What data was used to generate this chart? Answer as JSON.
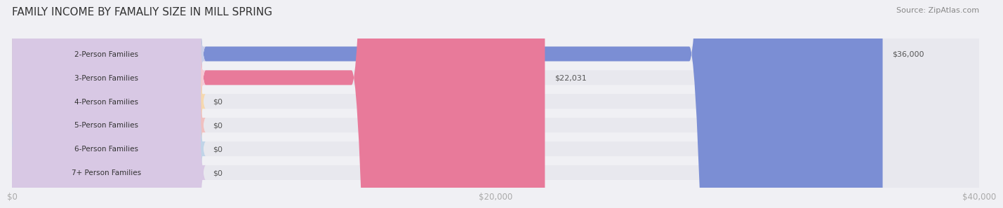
{
  "title": "FAMILY INCOME BY FAMALIY SIZE IN MILL SPRING",
  "source": "Source: ZipAtlas.com",
  "categories": [
    "2-Person Families",
    "3-Person Families",
    "4-Person Families",
    "5-Person Families",
    "6-Person Families",
    "7+ Person Families"
  ],
  "values": [
    36000,
    22031,
    0,
    0,
    0,
    0
  ],
  "bar_colors": [
    "#7b8ed4",
    "#e87a9a",
    "#f5c98a",
    "#e8a0a0",
    "#a0b8d8",
    "#c4afd4"
  ],
  "label_bg_colors": [
    "#c8cce8",
    "#f5c8d4",
    "#f5d8b0",
    "#f0c0c0",
    "#c0d4e8",
    "#d8c8e4"
  ],
  "value_labels": [
    "$36,000",
    "$22,031",
    "$0",
    "$0",
    "$0",
    "$0"
  ],
  "xlim": [
    0,
    40000
  ],
  "xticks": [
    0,
    20000,
    40000
  ],
  "xtick_labels": [
    "$0",
    "$20,000",
    "$40,000"
  ],
  "background_color": "#f0f0f4",
  "bar_background_color": "#e8e8ee",
  "title_fontsize": 11,
  "bar_height": 0.62,
  "figsize": [
    14.06,
    3.05
  ],
  "dpi": 100
}
